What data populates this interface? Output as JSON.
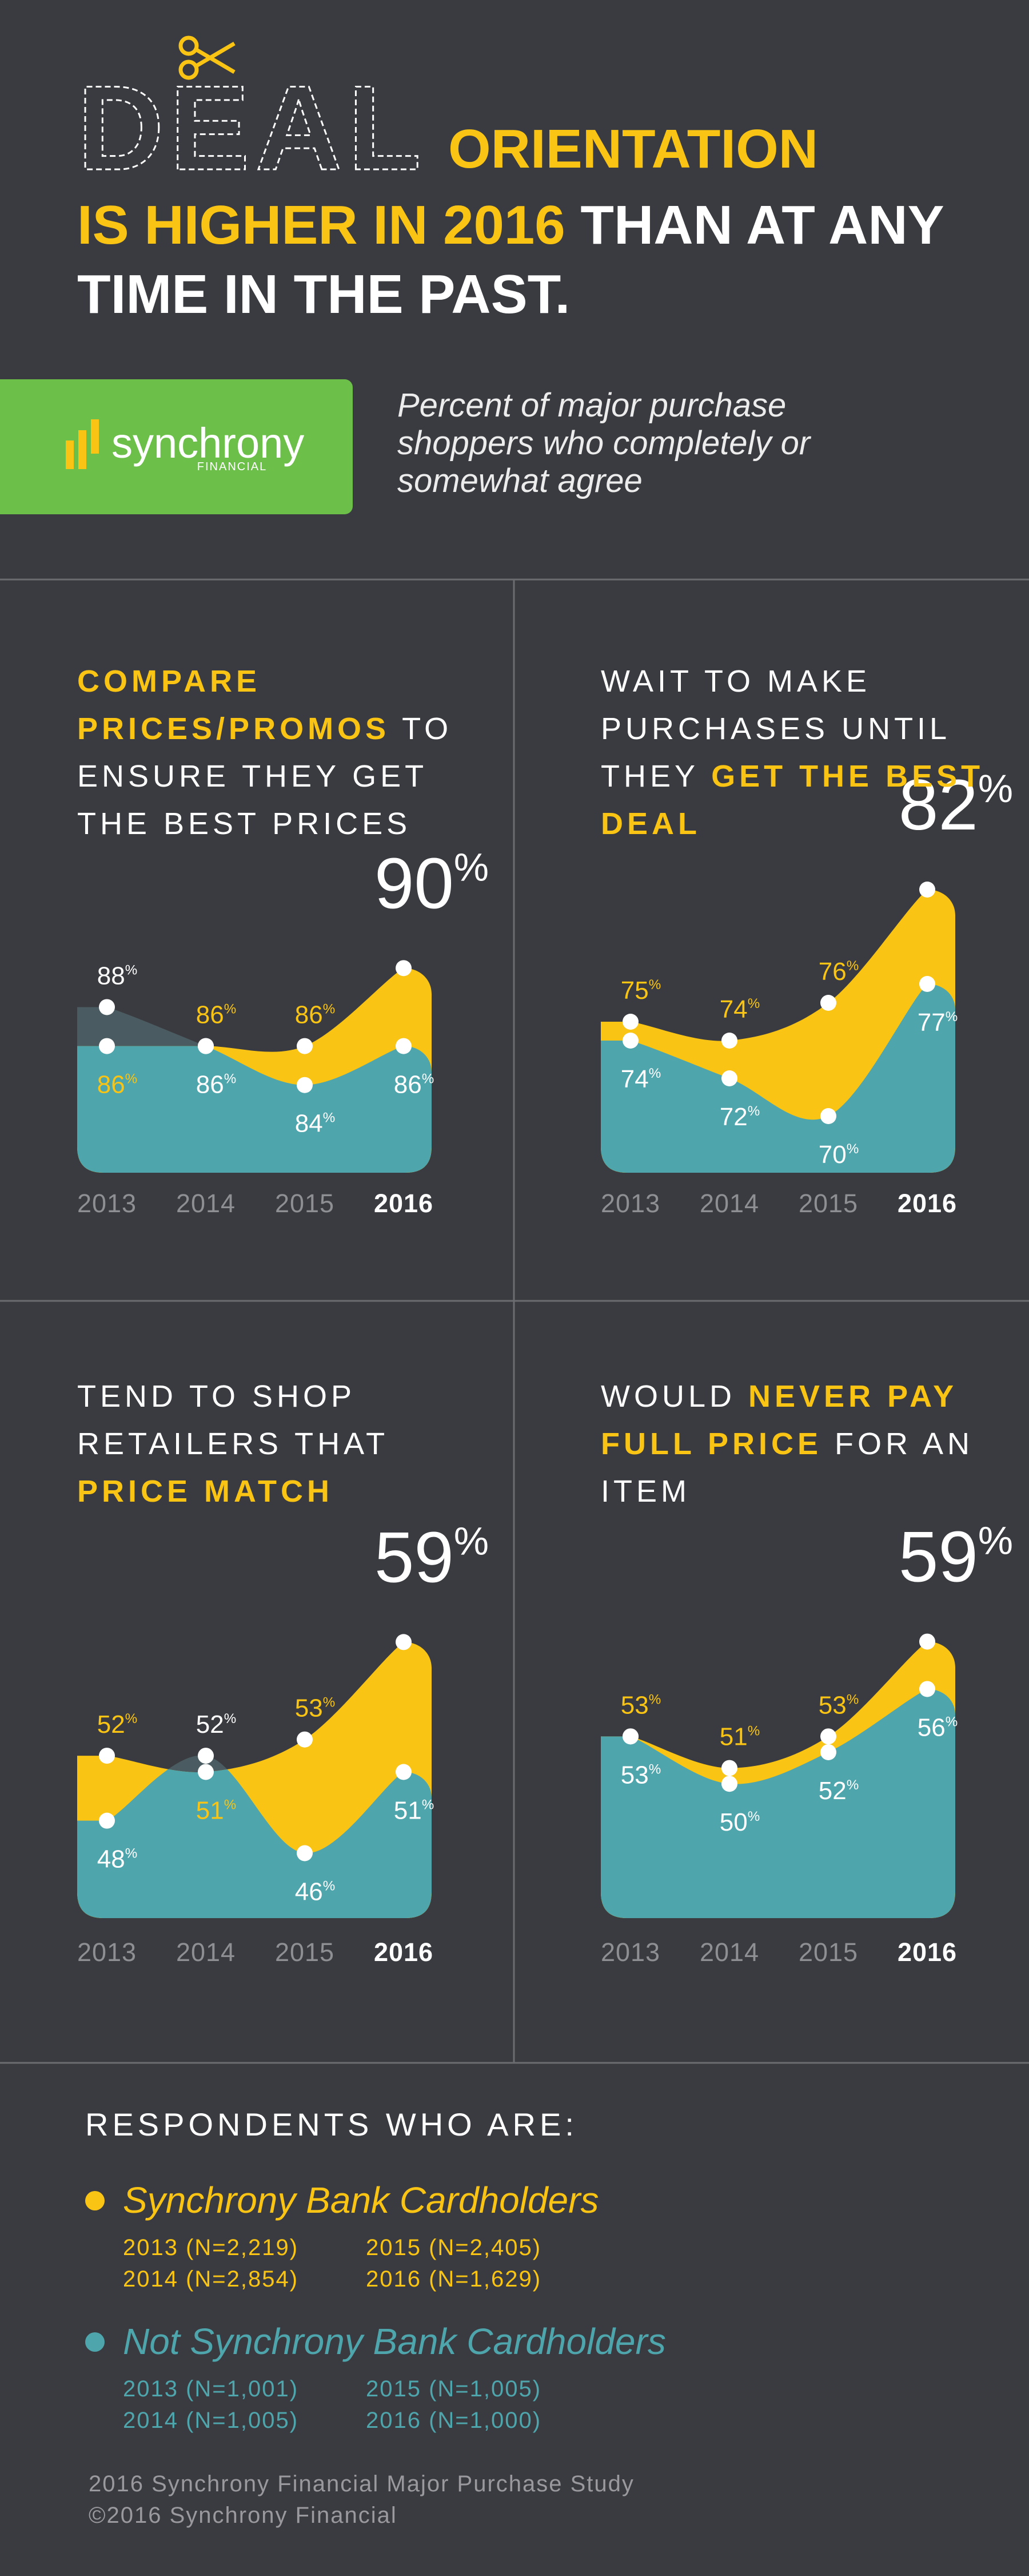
{
  "header": {
    "word": "DEAL",
    "title": [
      {
        "text": "ORIENTATION",
        "highlight": true
      },
      {
        "text": "IS HIGHER IN 2016",
        "highlight": true
      },
      {
        "text": "THAN AT ANY TIME IN THE PAST.",
        "highlight": false
      }
    ],
    "logo": {
      "name": "synchrony",
      "tagline": "FINANCIAL",
      "color": "#6cc04a"
    },
    "subtitle": "Percent of major purchase shoppers who completely or somewhat agree"
  },
  "chart_data": [
    {
      "type": "area",
      "title": [
        {
          "text": "COMPARE PRICES/PROMOS",
          "highlight": true
        },
        {
          "text": "TO ENSURE THEY GET THE BEST PRICES",
          "highlight": false
        }
      ],
      "categories": [
        "2013",
        "2014",
        "2015",
        "2016"
      ],
      "series": [
        {
          "color": "#f9c413",
          "label_color": "#f9c413",
          "values": [
            86,
            86,
            86,
            90
          ],
          "value_labels": [
            "86%",
            "86%",
            "86%",
            "90%"
          ]
        },
        {
          "color": "#4ea5ac",
          "label_color": "#ffffff",
          "values": [
            88,
            86,
            84,
            86
          ],
          "value_labels": [
            "88%",
            "86%",
            "84%",
            "86%"
          ]
        }
      ],
      "overlap_color": "#4a5c61",
      "ylim": [
        79.5,
        95
      ]
    },
    {
      "type": "area",
      "title": [
        {
          "text": "WAIT TO MAKE PURCHASES UNTIL THEY",
          "highlight": false
        },
        {
          "text": "GET THE BEST DEAL",
          "highlight": true
        }
      ],
      "categories": [
        "2013",
        "2014",
        "2015",
        "2016"
      ],
      "series": [
        {
          "color": "#f9c413",
          "label_color": "#f9c413",
          "values": [
            75,
            74,
            76,
            82
          ],
          "value_labels": [
            "75%",
            "74%",
            "76%",
            "82%"
          ]
        },
        {
          "color": "#4ea5ac",
          "label_color": "#ffffff",
          "values": [
            74,
            72,
            70,
            77
          ],
          "value_labels": [
            "74%",
            "72%",
            "70%",
            "77%"
          ]
        }
      ],
      "overlap_color": "#4a5c61",
      "ylim": [
        67,
        83
      ]
    },
    {
      "type": "area",
      "title": [
        {
          "text": "TEND TO SHOP RETAILERS THAT",
          "highlight": false
        },
        {
          "text": "PRICE MATCH",
          "highlight": true
        }
      ],
      "categories": [
        "2013",
        "2014",
        "2015",
        "2016"
      ],
      "series": [
        {
          "color": "#f9c413",
          "label_color": "#f9c413",
          "values": [
            52,
            51,
            53,
            59
          ],
          "value_labels": [
            "52%",
            "51%",
            "53%",
            "59%"
          ]
        },
        {
          "color": "#4ea5ac",
          "label_color": "#ffffff",
          "values": [
            48,
            52,
            46,
            51
          ],
          "value_labels": [
            "48%",
            "52%",
            "46%",
            "51%"
          ]
        }
      ],
      "overlap_color": "#4a5c61",
      "ylim": [
        42,
        60
      ]
    },
    {
      "type": "area",
      "title": [
        {
          "text": "WOULD",
          "highlight": false
        },
        {
          "text": "NEVER PAY FULL PRICE",
          "highlight": true
        },
        {
          "text": "FOR AN ITEM",
          "highlight": false
        }
      ],
      "categories": [
        "2013",
        "2014",
        "2015",
        "2016"
      ],
      "series": [
        {
          "color": "#f9c413",
          "label_color": "#f9c413",
          "values": [
            53,
            51,
            53,
            59
          ],
          "value_labels": [
            "53%",
            "51%",
            "53%",
            "59%"
          ]
        },
        {
          "color": "#4ea5ac",
          "label_color": "#ffffff",
          "values": [
            53,
            50,
            52,
            56
          ],
          "value_labels": [
            "53%",
            "50%",
            "52%",
            "56%"
          ]
        }
      ],
      "overlap_color": "#4a5c61",
      "ylim": [
        41.5,
        60
      ]
    }
  ],
  "respondents": {
    "title": "RESPONDENTS WHO ARE:",
    "groups": [
      {
        "name": "Synchrony Bank Cardholders",
        "color": "#f9c413",
        "samples": [
          "2013 (N=2,219)",
          "2014 (N=2,854)",
          "2015 (N=2,405)",
          "2016 (N=1,629)"
        ]
      },
      {
        "name": "Not Synchrony Bank Cardholders",
        "color": "#4ea5ac",
        "samples": [
          "2013 (N=1,001)",
          "2014 (N=1,005)",
          "2015 (N=1,005)",
          "2016 (N=1,000)"
        ]
      }
    ]
  },
  "footer": [
    "2016 Synchrony Financial Major Purchase Study",
    "©2016 Synchrony Financial"
  ]
}
